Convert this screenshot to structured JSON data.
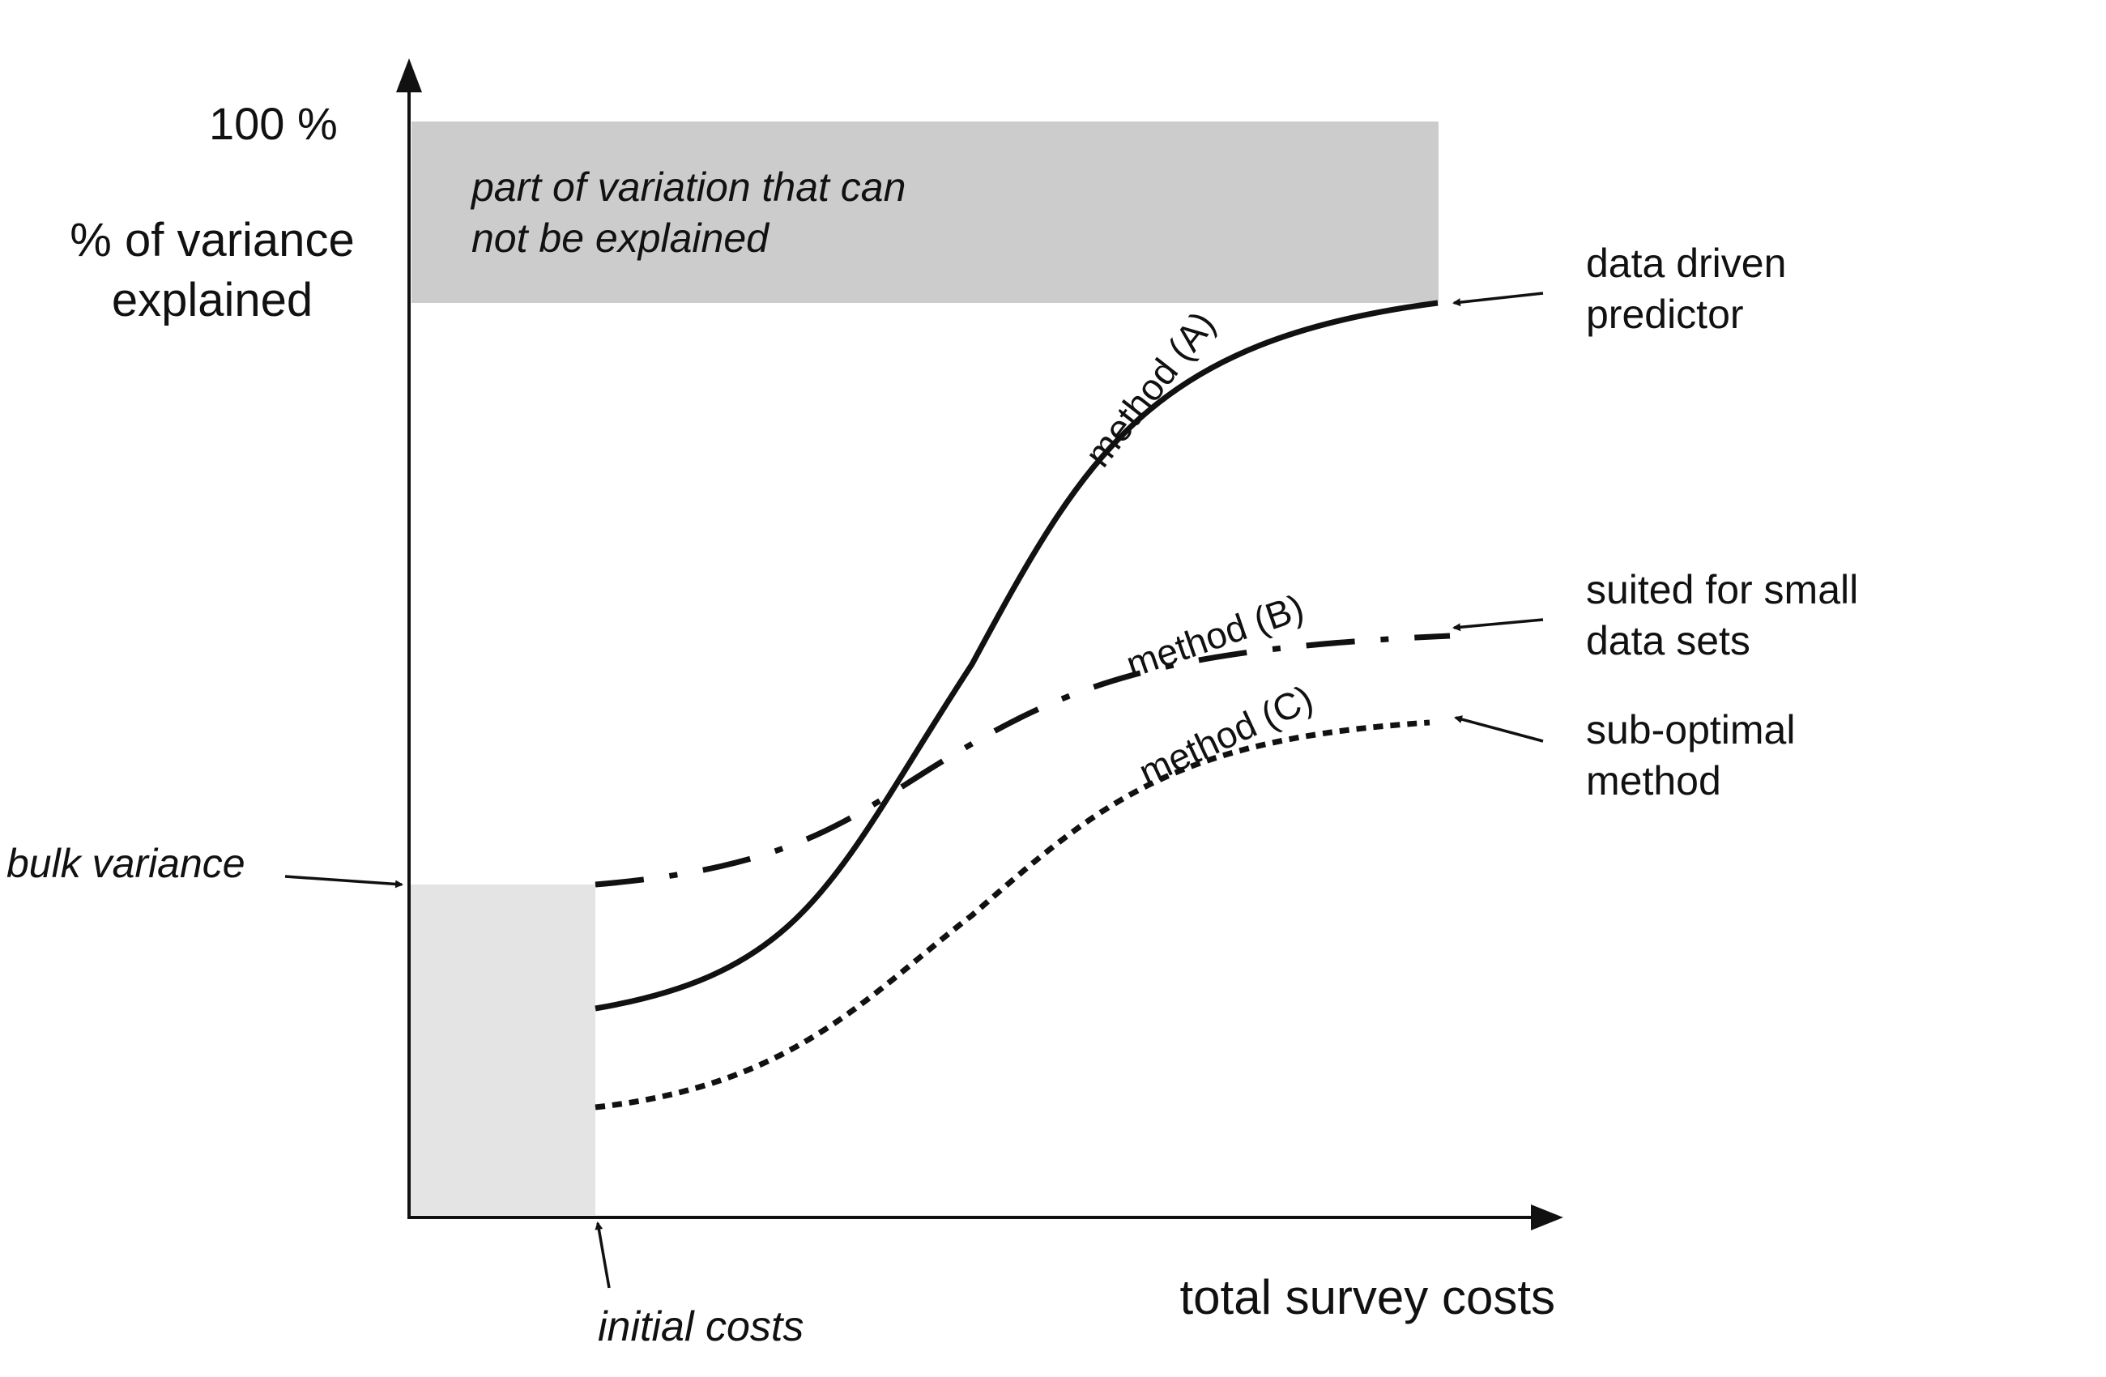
{
  "y_axis": {
    "top_label": "100 %",
    "title_lines": [
      "% of variance",
      "explained"
    ]
  },
  "x_axis": {
    "title": "total survey costs"
  },
  "unexplained_band": {
    "text_lines": [
      "part of variation that can",
      "not be explained"
    ],
    "fill_color": "#cccccc"
  },
  "bulk_box": {
    "fill_color": "#e4e4e4"
  },
  "annotations": {
    "bulk_variance": "bulk variance",
    "initial_costs": "initial costs",
    "method_a_right": [
      "data driven",
      "predictor"
    ],
    "method_b_right": [
      "suited for small",
      "data sets"
    ],
    "method_c_right": [
      "sub-optimal",
      "method"
    ]
  },
  "curves": [
    {
      "id": "A",
      "label": "method (A)",
      "style": "solid"
    },
    {
      "id": "B",
      "label": "method (B)",
      "style": "dash-dot"
    },
    {
      "id": "C",
      "label": "method (C)",
      "style": "dotted"
    }
  ]
}
